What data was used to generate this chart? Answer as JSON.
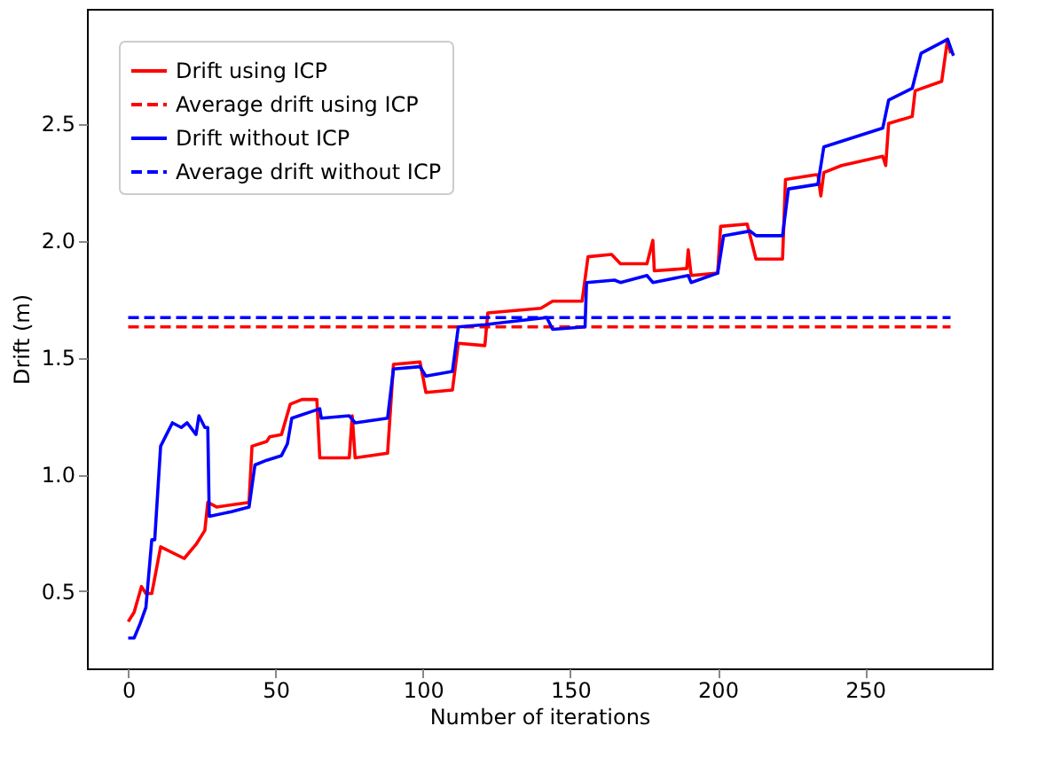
{
  "chart_data": {
    "type": "line",
    "xlabel": "Number of iterations",
    "ylabel": "Drift (m)",
    "xlim": [
      -14,
      293
    ],
    "ylim": [
      0.17,
      2.99
    ],
    "xticks": [
      0,
      50,
      100,
      150,
      200,
      250
    ],
    "yticks": [
      0.5,
      {
        "value": 1,
        "label": "1.0"
      },
      1.5,
      {
        "value": 2,
        "label": "2.0"
      },
      2.5
    ],
    "grid": false,
    "legend": "top left",
    "marker": "none",
    "series": [
      {
        "name": "Drift using ICP",
        "color": "#ff0000",
        "line_style": "solid",
        "x": [
          0,
          2,
          4.5,
          6,
          8,
          11,
          19,
          23,
          26,
          27,
          30,
          41,
          42,
          47,
          48,
          52,
          55,
          59,
          64,
          65,
          75,
          76,
          77,
          88,
          90,
          99,
          101,
          110,
          112,
          121,
          122,
          140,
          144,
          154,
          156,
          164,
          167,
          176,
          178,
          178.5,
          189.5,
          190,
          191,
          200,
          201,
          210,
          213,
          222,
          223,
          233,
          234,
          235,
          236,
          242,
          256,
          257,
          258,
          266,
          267,
          276,
          278,
          279
        ],
        "values": [
          0.37,
          0.41,
          0.52,
          0.49,
          0.49,
          0.69,
          0.64,
          0.7,
          0.76,
          0.88,
          0.86,
          0.88,
          1.12,
          1.14,
          1.16,
          1.17,
          1.3,
          1.32,
          1.32,
          1.07,
          1.07,
          1.25,
          1.07,
          1.09,
          1.47,
          1.48,
          1.35,
          1.36,
          1.56,
          1.55,
          1.69,
          1.71,
          1.74,
          1.74,
          1.93,
          1.94,
          1.9,
          1.9,
          2.0,
          1.87,
          1.88,
          1.96,
          1.85,
          1.86,
          2.06,
          2.07,
          1.92,
          1.92,
          2.26,
          2.28,
          2.28,
          2.19,
          2.29,
          2.32,
          2.36,
          2.32,
          2.5,
          2.53,
          2.64,
          2.68,
          2.86,
          2.8
        ]
      },
      {
        "name": "Average drift using ICP",
        "color": "#ff0000",
        "line_style": "dashed",
        "x": [
          0,
          279
        ],
        "values": [
          1.63,
          1.63
        ]
      },
      {
        "name": "Drift without ICP",
        "color": "#0000ff",
        "line_style": "solid",
        "x": [
          0,
          2,
          4,
          6,
          8,
          9,
          11,
          13,
          15,
          18,
          20,
          23,
          24,
          26,
          27,
          27.5,
          35,
          41,
          43,
          47,
          52,
          54,
          55.5,
          65,
          65.5,
          75,
          77,
          88,
          90,
          99,
          101,
          110,
          112,
          121,
          128,
          142,
          144,
          155,
          155.5,
          165,
          167,
          176,
          178,
          190,
          191,
          200,
          202,
          211,
          213,
          222,
          224,
          234,
          236,
          256,
          258,
          266,
          269,
          278,
          280
        ],
        "values": [
          0.3,
          0.3,
          0.36,
          0.43,
          0.72,
          0.72,
          1.12,
          1.17,
          1.22,
          1.2,
          1.22,
          1.17,
          1.25,
          1.2,
          1.2,
          0.82,
          0.84,
          0.86,
          1.04,
          1.06,
          1.08,
          1.13,
          1.24,
          1.28,
          1.24,
          1.25,
          1.22,
          1.24,
          1.45,
          1.46,
          1.42,
          1.44,
          1.63,
          1.64,
          1.65,
          1.67,
          1.62,
          1.63,
          1.82,
          1.83,
          1.82,
          1.85,
          1.82,
          1.85,
          1.82,
          1.86,
          2.02,
          2.04,
          2.02,
          2.02,
          2.22,
          2.24,
          2.4,
          2.48,
          2.6,
          2.65,
          2.8,
          2.86,
          2.79
        ]
      },
      {
        "name": "Average drift without ICP",
        "color": "#0000ff",
        "line_style": "dashed",
        "x": [
          0,
          279
        ],
        "values": [
          1.67,
          1.67
        ]
      }
    ]
  }
}
